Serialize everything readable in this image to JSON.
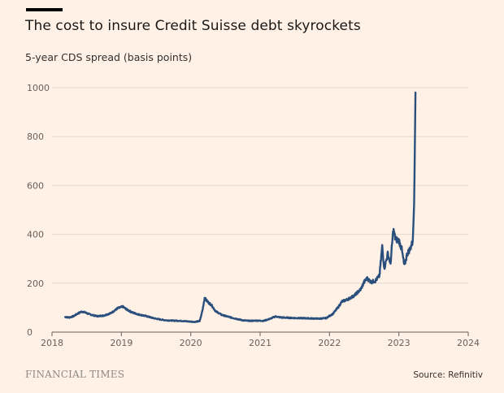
{
  "header": {
    "title": "The cost to insure Credit Suisse debt skyrockets",
    "subtitle": "5-year CDS spread (basis points)"
  },
  "footer": {
    "brand": "FINANCIAL TIMES",
    "source": "Source: Refinitiv"
  },
  "colors": {
    "background": "#fff1e5",
    "line": "#2b4f7d",
    "grid": "#e3d8cf",
    "axis": "#66605c"
  },
  "chart_data": {
    "type": "line",
    "title": "The cost to insure Credit Suisse debt skyrockets",
    "ylabel": "5-year CDS spread (basis points)",
    "xlabel": "",
    "xlim": [
      2018,
      2024
    ],
    "ylim": [
      0,
      1000
    ],
    "x_ticks": [
      "2018",
      "2019",
      "2020",
      "2021",
      "2022",
      "2023",
      "2024"
    ],
    "y_ticks": [
      "0",
      "200",
      "400",
      "600",
      "800",
      "1000"
    ],
    "grid": true,
    "series": [
      {
        "values": [
          [
            2018.19,
            62
          ],
          [
            2018.25,
            60
          ],
          [
            2018.31,
            65
          ],
          [
            2018.37,
            76
          ],
          [
            2018.43,
            84
          ],
          [
            2018.48,
            80
          ],
          [
            2018.55,
            72
          ],
          [
            2018.65,
            65
          ],
          [
            2018.75,
            68
          ],
          [
            2018.85,
            78
          ],
          [
            2018.95,
            98
          ],
          [
            2019.02,
            104
          ],
          [
            2019.08,
            92
          ],
          [
            2019.16,
            80
          ],
          [
            2019.25,
            72
          ],
          [
            2019.35,
            66
          ],
          [
            2019.45,
            58
          ],
          [
            2019.55,
            52
          ],
          [
            2019.65,
            48
          ],
          [
            2019.75,
            47
          ],
          [
            2019.85,
            46
          ],
          [
            2019.95,
            44
          ],
          [
            2020.05,
            42
          ],
          [
            2020.13,
            45
          ],
          [
            2020.17,
            90
          ],
          [
            2020.2,
            140
          ],
          [
            2020.24,
            125
          ],
          [
            2020.3,
            110
          ],
          [
            2020.36,
            85
          ],
          [
            2020.45,
            70
          ],
          [
            2020.55,
            62
          ],
          [
            2020.65,
            55
          ],
          [
            2020.75,
            48
          ],
          [
            2020.85,
            46
          ],
          [
            2020.95,
            47
          ],
          [
            2021.05,
            46
          ],
          [
            2021.15,
            55
          ],
          [
            2021.22,
            64
          ],
          [
            2021.3,
            60
          ],
          [
            2021.45,
            58
          ],
          [
            2021.6,
            57
          ],
          [
            2021.75,
            56
          ],
          [
            2021.85,
            55
          ],
          [
            2021.95,
            57
          ],
          [
            2022.05,
            75
          ],
          [
            2022.12,
            100
          ],
          [
            2022.18,
            125
          ],
          [
            2022.27,
            135
          ],
          [
            2022.36,
            150
          ],
          [
            2022.45,
            175
          ],
          [
            2022.5,
            205
          ],
          [
            2022.54,
            220
          ],
          [
            2022.6,
            205
          ],
          [
            2022.66,
            210
          ],
          [
            2022.72,
            230
          ],
          [
            2022.76,
            350
          ],
          [
            2022.79,
            260
          ],
          [
            2022.84,
            320
          ],
          [
            2022.88,
            280
          ],
          [
            2022.92,
            420
          ],
          [
            2022.95,
            380
          ],
          [
            2023.0,
            375
          ],
          [
            2023.04,
            340
          ],
          [
            2023.08,
            270
          ],
          [
            2023.12,
            320
          ],
          [
            2023.16,
            340
          ],
          [
            2023.2,
            370
          ],
          [
            2023.22,
            520
          ],
          [
            2023.24,
            980
          ]
        ]
      }
    ]
  }
}
